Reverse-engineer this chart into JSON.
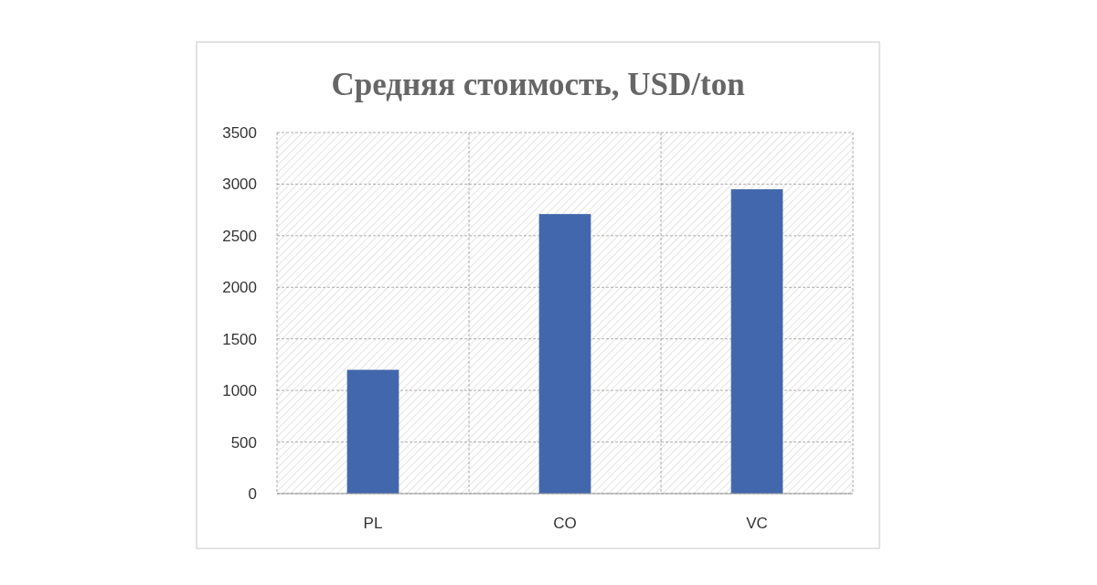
{
  "chart_data": {
    "type": "bar",
    "title": "Средняя стоимость, USD/ton",
    "categories": [
      "PL",
      "CO",
      "VC"
    ],
    "values": [
      1200,
      2710,
      2950
    ],
    "color": "#4267ac",
    "ylim": [
      0,
      3500
    ],
    "yticks": [
      0,
      500,
      1000,
      1500,
      2000,
      2500,
      3000,
      3500
    ],
    "grid": true
  }
}
